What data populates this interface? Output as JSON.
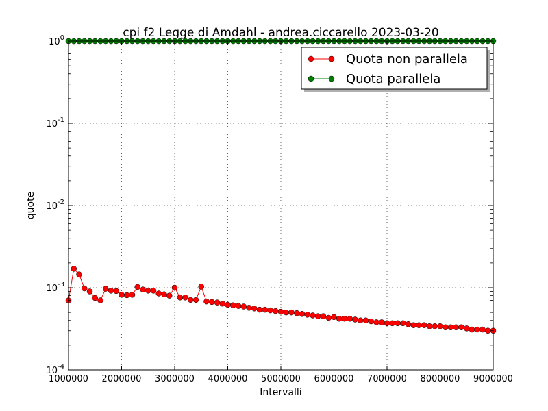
{
  "chart_data": {
    "type": "line",
    "title": "cpi f2 Legge di Amdahl  -  andrea.ciccarello  2023-03-20",
    "xlabel": "Intervalli",
    "ylabel": "quote",
    "xlim": [
      1000000,
      9000000
    ],
    "ylim": [
      0.0001,
      1
    ],
    "yscale": "log",
    "grid": true,
    "legend_position": "top-right",
    "x_ticks": [
      "1000000",
      "2000000",
      "3000000",
      "4000000",
      "5000000",
      "6000000",
      "7000000",
      "8000000",
      "9000000"
    ],
    "y_ticks": [
      {
        "base": "10",
        "exp": "-4"
      },
      {
        "base": "10",
        "exp": "-3"
      },
      {
        "base": "10",
        "exp": "-2"
      },
      {
        "base": "10",
        "exp": "-1"
      },
      {
        "base": "10",
        "exp": "0"
      }
    ],
    "x": [
      1000000,
      1100000,
      1200000,
      1300000,
      1400000,
      1500000,
      1600000,
      1700000,
      1800000,
      1900000,
      2000000,
      2100000,
      2200000,
      2300000,
      2400000,
      2500000,
      2600000,
      2700000,
      2800000,
      2900000,
      3000000,
      3100000,
      3200000,
      3300000,
      3400000,
      3500000,
      3600000,
      3700000,
      3800000,
      3900000,
      4000000,
      4100000,
      4200000,
      4300000,
      4400000,
      4500000,
      4600000,
      4700000,
      4800000,
      4900000,
      5000000,
      5100000,
      5200000,
      5300000,
      5400000,
      5500000,
      5600000,
      5700000,
      5800000,
      5900000,
      6000000,
      6100000,
      6200000,
      6300000,
      6400000,
      6500000,
      6600000,
      6700000,
      6800000,
      6900000,
      7000000,
      7100000,
      7200000,
      7300000,
      7400000,
      7500000,
      7600000,
      7700000,
      7800000,
      7900000,
      8000000,
      8100000,
      8200000,
      8300000,
      8400000,
      8500000,
      8600000,
      8700000,
      8800000,
      8900000,
      9000000
    ],
    "series": [
      {
        "name": "Quota non parallela",
        "color": "#ff0000",
        "values": [
          0.0007,
          0.0017,
          0.00145,
          0.00098,
          0.0009,
          0.00075,
          0.0007,
          0.00097,
          0.00092,
          0.00091,
          0.00082,
          0.00081,
          0.00082,
          0.00102,
          0.00095,
          0.00092,
          0.00092,
          0.00085,
          0.00083,
          0.0008,
          0.001,
          0.00076,
          0.00076,
          0.00071,
          0.00071,
          0.00103,
          0.00068,
          0.00067,
          0.00066,
          0.00064,
          0.00062,
          0.00061,
          0.0006,
          0.00059,
          0.00057,
          0.00056,
          0.00054,
          0.00054,
          0.00053,
          0.00052,
          0.00051,
          0.0005,
          0.0005,
          0.00049,
          0.00048,
          0.00047,
          0.00046,
          0.00045,
          0.00045,
          0.00043,
          0.00044,
          0.00042,
          0.00042,
          0.00042,
          0.00041,
          0.0004,
          0.0004,
          0.00039,
          0.00038,
          0.00038,
          0.00037,
          0.00037,
          0.00037,
          0.00037,
          0.00036,
          0.00035,
          0.00035,
          0.00035,
          0.00034,
          0.00034,
          0.00034,
          0.00033,
          0.00033,
          0.00033,
          0.00033,
          0.00032,
          0.00031,
          0.00031,
          0.00031,
          0.0003,
          0.0003
        ]
      },
      {
        "name": "Quota parallela",
        "color": "#008000",
        "values": [
          0.9993,
          0.9983,
          0.99855,
          0.99902,
          0.9991,
          0.99925,
          0.9993,
          0.99903,
          0.99908,
          0.99909,
          0.99918,
          0.99919,
          0.99918,
          0.99898,
          0.99905,
          0.99908,
          0.99908,
          0.99915,
          0.99917,
          0.9992,
          0.999,
          0.99924,
          0.99924,
          0.99929,
          0.99929,
          0.99897,
          0.99932,
          0.99933,
          0.99934,
          0.99936,
          0.99938,
          0.99939,
          0.9994,
          0.99941,
          0.99943,
          0.99944,
          0.99946,
          0.99946,
          0.99947,
          0.99948,
          0.99949,
          0.9995,
          0.9995,
          0.99951,
          0.99952,
          0.99953,
          0.99954,
          0.99955,
          0.99955,
          0.99957,
          0.99956,
          0.99958,
          0.99958,
          0.99958,
          0.99959,
          0.9996,
          0.9996,
          0.99961,
          0.99962,
          0.99962,
          0.99963,
          0.99963,
          0.99963,
          0.99963,
          0.99964,
          0.99965,
          0.99965,
          0.99965,
          0.99966,
          0.99966,
          0.99966,
          0.99967,
          0.99967,
          0.99967,
          0.99967,
          0.99968,
          0.99969,
          0.99969,
          0.99969,
          0.9997,
          0.9997
        ]
      }
    ]
  }
}
